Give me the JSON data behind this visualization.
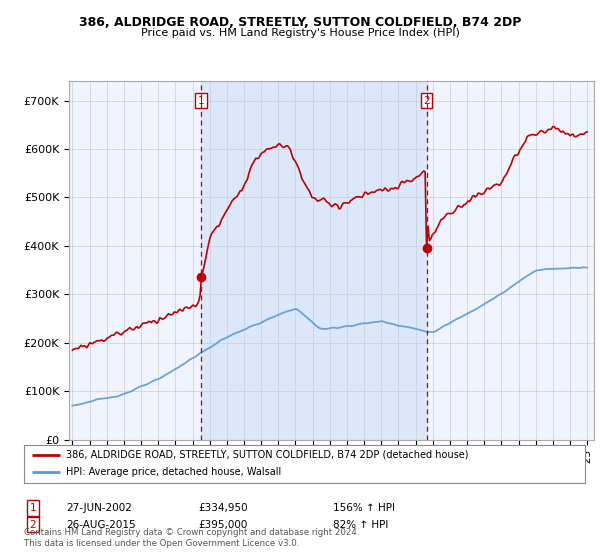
{
  "title_line1": "386, ALDRIDGE ROAD, STREETLY, SUTTON COLDFIELD, B74 2DP",
  "title_line2": "Price paid vs. HM Land Registry's House Price Index (HPI)",
  "ylabel_ticks": [
    "£0",
    "£100K",
    "£200K",
    "£300K",
    "£400K",
    "£500K",
    "£600K",
    "£700K"
  ],
  "ytick_values": [
    0,
    100000,
    200000,
    300000,
    400000,
    500000,
    600000,
    700000
  ],
  "ylim": [
    0,
    740000
  ],
  "xlim_start": 1994.8,
  "xlim_end": 2025.4,
  "hpi_color": "#5b9bd5",
  "price_color": "#c00000",
  "vline_color": "#c00000",
  "marker_color": "#c00000",
  "fill_color": "#ddeeff",
  "transaction1_x": 2002.49,
  "transaction1_y": 334950,
  "transaction2_x": 2015.65,
  "transaction2_y": 395000,
  "legend_label1": "386, ALDRIDGE ROAD, STREETLY, SUTTON COLDFIELD, B74 2DP (detached house)",
  "legend_label2": "HPI: Average price, detached house, Walsall",
  "note1_box": "1",
  "note1_date": "27-JUN-2002",
  "note1_price": "£334,950",
  "note1_hpi": "156% ↑ HPI",
  "note2_box": "2",
  "note2_date": "26-AUG-2015",
  "note2_price": "£395,000",
  "note2_hpi": "82% ↑ HPI",
  "footer": "Contains HM Land Registry data © Crown copyright and database right 2024.\nThis data is licensed under the Open Government Licence v3.0.",
  "background_color": "#ffffff",
  "plot_bg_color": "#f0f4ff",
  "grid_color": "#cccccc"
}
